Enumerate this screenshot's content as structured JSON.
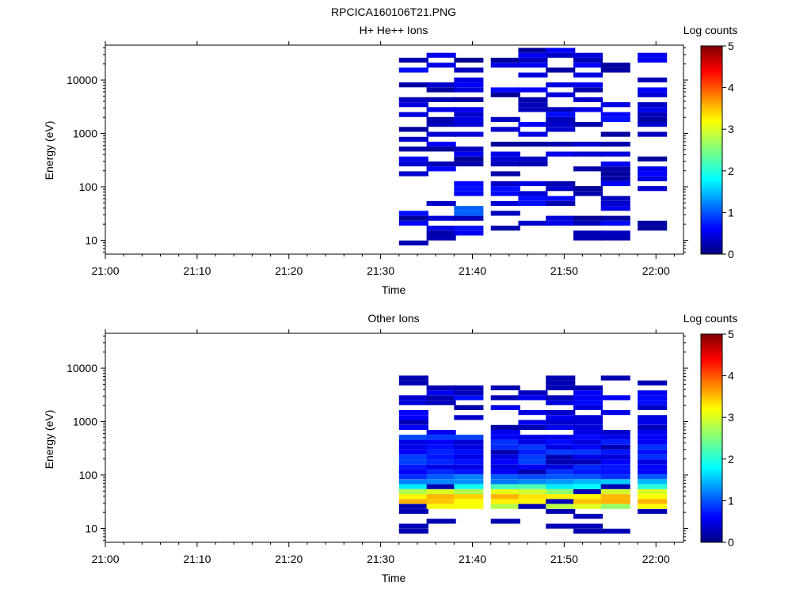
{
  "figure_title": "RPCICA160106T21.PNG",
  "colorbar": {
    "label": "Log counts",
    "ticks": [
      "0",
      "1",
      "2",
      "3",
      "4",
      "5"
    ],
    "range": [
      0,
      5
    ]
  },
  "chart_data": [
    {
      "type": "heatmap",
      "title": "H+ He++ Ions",
      "xlabel": "Time",
      "ylabel": "Energy (eV)",
      "yscale": "log",
      "ylim": [
        5.5,
        45000
      ],
      "xlim_minutes": [
        0,
        63
      ],
      "x_ticks": [
        "21:00",
        "21:10",
        "21:20",
        "21:30",
        "21:40",
        "21:50",
        "22:00"
      ],
      "y_ticks": [
        "10",
        "100",
        "1000",
        "10000"
      ],
      "time_bins": [
        "21:32",
        "21:35",
        "21:38",
        "21:42",
        "21:45",
        "21:48",
        "21:51",
        "21:54",
        "21:58"
      ],
      "pattern": "sparse",
      "seed": 7
    },
    {
      "type": "heatmap",
      "title": "Other Ions",
      "xlabel": "Time",
      "ylabel": "Energy (eV)",
      "yscale": "log",
      "ylim": [
        5.5,
        45000
      ],
      "xlim_minutes": [
        0,
        63
      ],
      "x_ticks": [
        "21:00",
        "21:10",
        "21:20",
        "21:30",
        "21:40",
        "21:50",
        "22:00"
      ],
      "y_ticks": [
        "10",
        "100",
        "1000",
        "10000"
      ],
      "time_bins": [
        "21:32",
        "21:35",
        "21:38",
        "21:42",
        "21:45",
        "21:48",
        "21:51",
        "21:54",
        "21:58"
      ],
      "pattern": "dense",
      "seed": 19
    }
  ]
}
